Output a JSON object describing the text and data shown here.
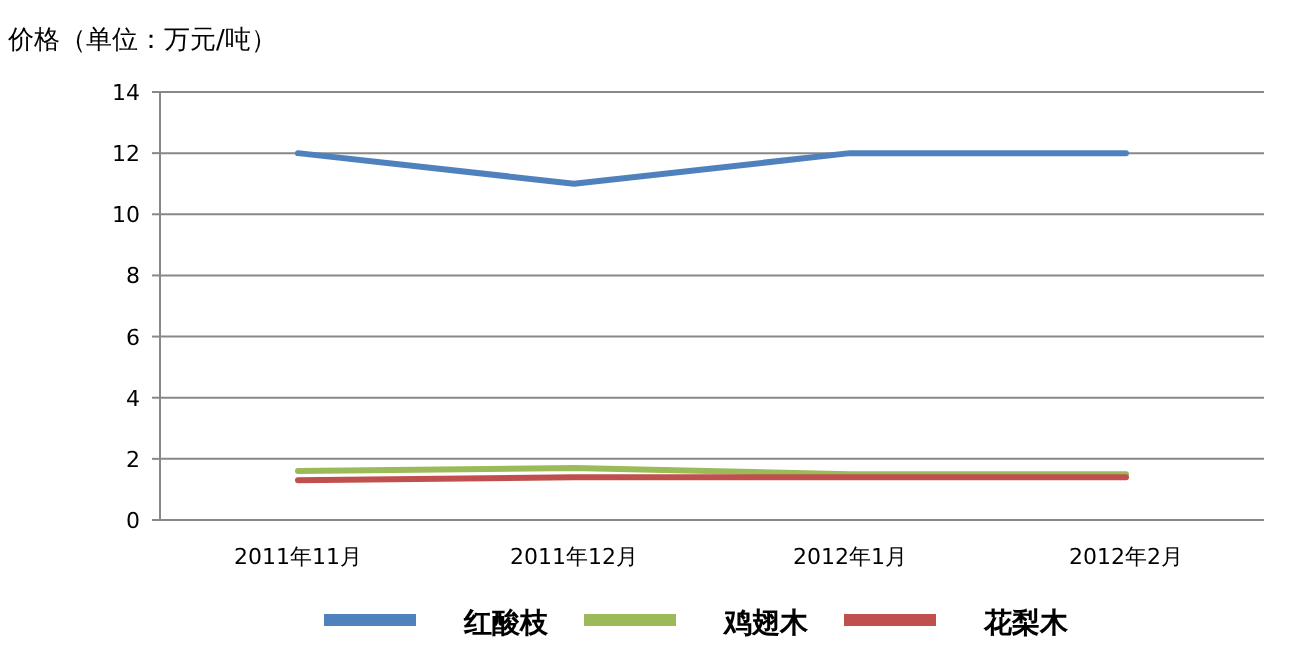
{
  "chart_data": {
    "type": "line",
    "ylabel": "价格（单位：万元/吨）",
    "categories": [
      "2011年11月",
      "2011年12月",
      "2012年1月",
      "2012年2月"
    ],
    "series": [
      {
        "name": "红酸枝",
        "color": "#4f81bd",
        "values": [
          12,
          11,
          12,
          12
        ]
      },
      {
        "name": "鸡翅木",
        "color": "#9bbb59",
        "values": [
          1.6,
          1.7,
          1.5,
          1.5
        ]
      },
      {
        "name": "花梨木",
        "color": "#c0504d",
        "values": [
          1.3,
          1.4,
          1.4,
          1.4
        ]
      }
    ],
    "ylim": [
      0,
      14
    ],
    "yticks": [
      0,
      2,
      4,
      6,
      8,
      10,
      12,
      14
    ],
    "grid": "y",
    "legend": "bottom",
    "marker": "none",
    "line_style": "solid"
  }
}
